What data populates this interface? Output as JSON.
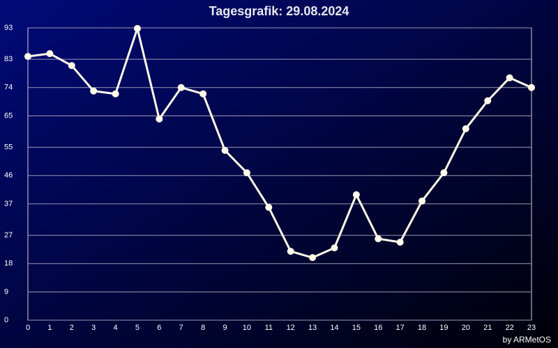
{
  "chart_data": {
    "type": "line",
    "title": "Tagesgrafik: 29.08.2024",
    "credit": "by ARMetOS",
    "x": [
      0,
      1,
      2,
      3,
      4,
      5,
      6,
      7,
      8,
      9,
      10,
      11,
      12,
      13,
      14,
      15,
      16,
      17,
      18,
      19,
      20,
      21,
      22,
      23
    ],
    "series": [
      {
        "color": "#fffbe8",
        "values": [
          83.9,
          84.8,
          81.0,
          72.9,
          72.0,
          92.8,
          64.0,
          74.0,
          72.0,
          54.0,
          46.9,
          35.9,
          21.9,
          19.9,
          23.0,
          39.9,
          25.9,
          24.8,
          37.9,
          46.9,
          60.9,
          69.8,
          77.1,
          74.0
        ]
      }
    ],
    "xlim": [
      0,
      23
    ],
    "xticks": [
      0,
      1,
      2,
      3,
      4,
      5,
      6,
      7,
      8,
      9,
      10,
      11,
      12,
      13,
      14,
      15,
      16,
      17,
      18,
      19,
      20,
      21,
      22,
      23
    ],
    "ylim": [
      0,
      93
    ],
    "yticks": [
      0,
      9,
      18,
      27,
      37,
      46,
      55,
      65,
      74,
      83,
      93
    ],
    "grid": true
  }
}
